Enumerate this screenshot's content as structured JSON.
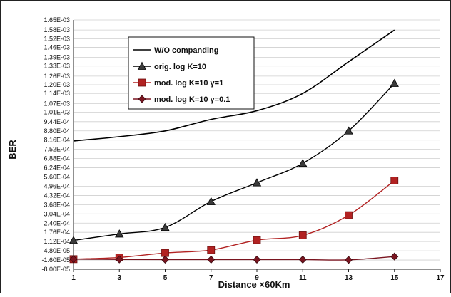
{
  "chart_data": {
    "type": "line",
    "title": "",
    "xlabel": "Distance  ×60Km",
    "ylabel": "BER",
    "xlim": [
      1,
      17
    ],
    "ylim": [
      -8e-05,
      0.00165
    ],
    "x_ticks": [
      "1",
      "3",
      "5",
      "7",
      "9",
      "11",
      "13",
      "15",
      "17"
    ],
    "y_ticks": [
      -8e-05,
      -1.6e-05,
      4.8e-05,
      0.000112,
      0.000176,
      0.00024,
      0.000304,
      0.000368,
      0.000432,
      0.000496,
      0.00056,
      0.000624,
      0.000688,
      0.000752,
      0.000816,
      0.00088,
      0.000944,
      0.00101,
      0.00107,
      0.00114,
      0.0012,
      0.00126,
      0.00133,
      0.00139,
      0.00146,
      0.00152,
      0.00158,
      0.00165
    ],
    "y_tick_labels": [
      "-8.00E-05",
      "-1.60E-05",
      "4.80E-05",
      "1.12E-04",
      "1.76E-04",
      "2.40E-04",
      "3.04E-04",
      "3.68E-04",
      "4.32E-04",
      "4.96E-04",
      "5.60E-04",
      "6.24E-04",
      "6.88E-04",
      "7.52E-04",
      "8.16E-04",
      "8.80E-04",
      "9.44E-04",
      "1.01E-03",
      "1.07E-03",
      "1.14E-03",
      "1.20E-03",
      "1.26E-03",
      "1.33E-03",
      "1.39E-03",
      "1.46E-03",
      "1.52E-03",
      "1.58E-03",
      "1.65E-03"
    ],
    "grid": {
      "horizontal": true,
      "vertical": false
    },
    "legend_position": "top-left",
    "x": [
      1,
      3,
      5,
      7,
      9,
      11,
      13,
      15
    ],
    "series": [
      {
        "name": "W/O companding",
        "marker": "none",
        "color": "#000000",
        "values": [
          0.00081,
          0.00084,
          0.00088,
          0.00096,
          0.00102,
          0.00114,
          0.00136,
          0.00158
        ]
      },
      {
        "name": "orig. log K=10",
        "marker": "triangle",
        "color": "#000000",
        "values": [
          0.00012,
          0.000165,
          0.00021,
          0.00039,
          0.00052,
          0.000655,
          0.00088,
          0.00121
        ]
      },
      {
        "name": "mod. log K=10 γ=1",
        "marker": "square",
        "color": "#b22222",
        "values": [
          -1e-05,
          2e-06,
          3.3e-05,
          5.3e-05,
          0.000122,
          0.000155,
          0.000295,
          0.000535
        ]
      },
      {
        "name": "mod. log K=10 γ=0.1",
        "marker": "diamond",
        "color": "#7a1520",
        "values": [
          -1e-05,
          -1.2e-05,
          -1.3e-05,
          -1.3e-05,
          -1.3e-05,
          -1.3e-05,
          -1.5e-05,
          8e-06
        ]
      }
    ]
  }
}
